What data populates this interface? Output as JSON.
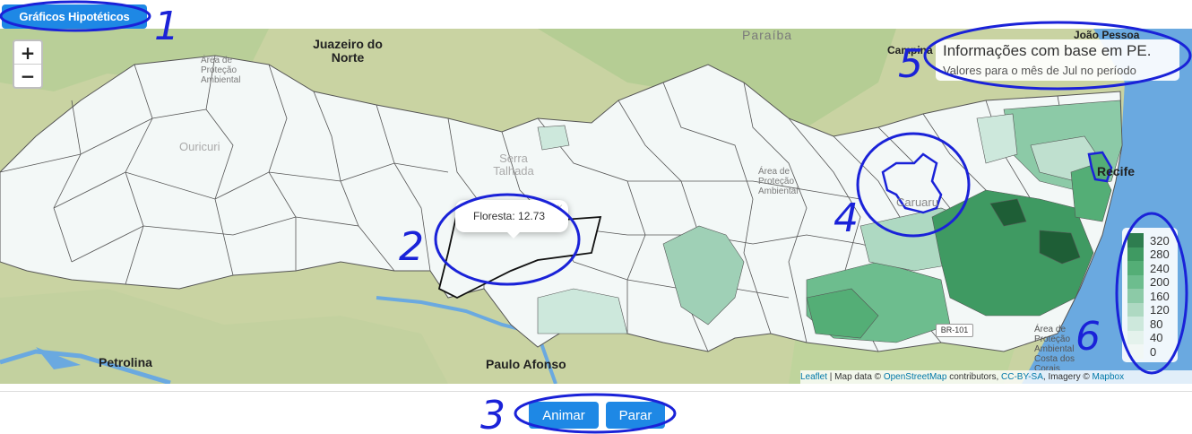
{
  "header": {
    "button_label": "Gráficos Hipotéticos"
  },
  "map": {
    "zoom_in": "+",
    "zoom_out": "−",
    "places": {
      "juazeiro": "Juazeiro do Norte",
      "paraiba": "Paraíba",
      "campina": "Campina",
      "joao_pessoa": "João Pessoa",
      "recife": "Recife",
      "paulo_afonso": "Paulo Afonso",
      "petrolina": "Petrolina",
      "ouricuri": "Ouricuri",
      "serra_talhada": "Serra Talhada",
      "caruaru": "Caruaru",
      "area_protecao_1": "Área de Proteção Ambiental",
      "area_protecao_2": "Área de Proteção Ambiental",
      "area_protecao_3": "Área de Proteção Ambiental Costa dos Corais",
      "road": "BR-101"
    },
    "info": {
      "title": "Informações com base em PE.",
      "subtitle": "Valores para o mês de Jul no período"
    },
    "popup": {
      "text": "Floresta: 12.73",
      "close": "×"
    },
    "legend": {
      "labels": [
        "320",
        "280",
        "240",
        "200",
        "160",
        "120",
        "80",
        "40",
        "0"
      ],
      "colors": [
        "#2e7d4f",
        "#3f9a62",
        "#54ae76",
        "#6dbd8e",
        "#8ccaa7",
        "#aed9c2",
        "#cde8dc",
        "#e4f2ec",
        "#f1f7f5"
      ]
    },
    "attribution": {
      "leaflet": "Leaflet",
      "map_data": " | Map data © ",
      "osm": "OpenStreetMap",
      "contributors": " contributors, ",
      "license": "CC-BY-SA",
      "imagery": ", Imagery © ",
      "mapbox": "Mapbox"
    }
  },
  "controls": {
    "animate_label": "Animar",
    "stop_label": "Parar"
  },
  "annotations": {
    "n1": "1",
    "n2": "2",
    "n3": "3",
    "n4": "4",
    "n5": "5",
    "n6": "6",
    "color": "#1a22d8"
  }
}
